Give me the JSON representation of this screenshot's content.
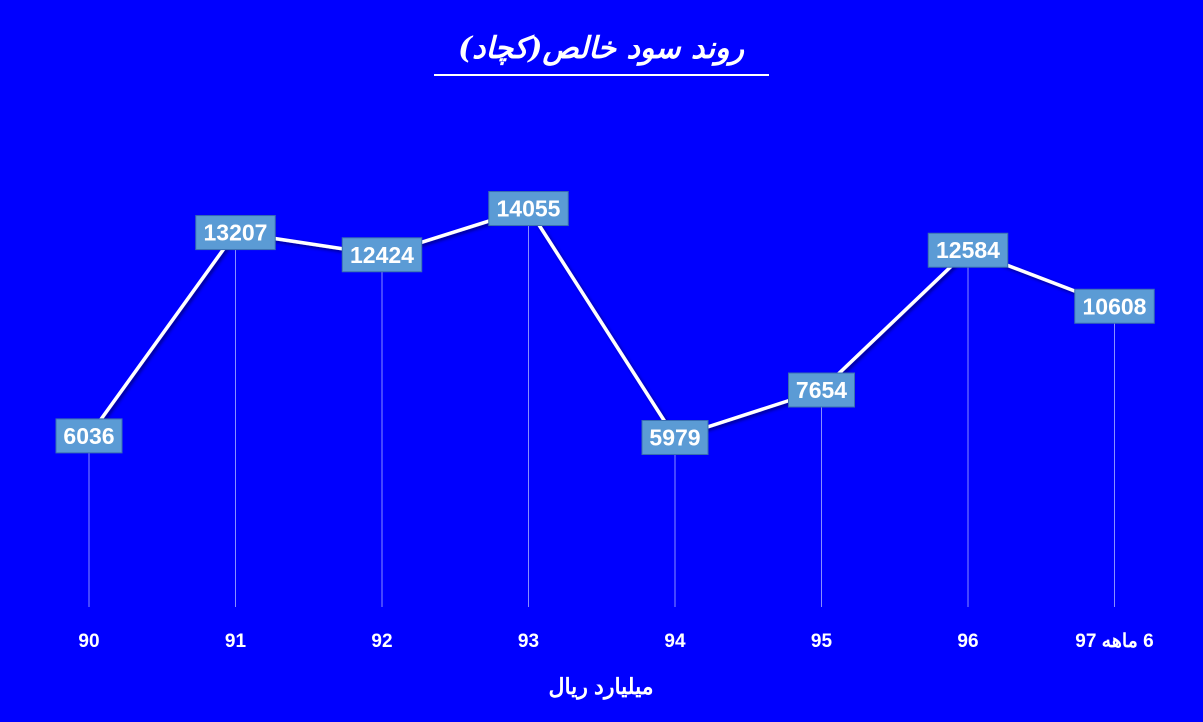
{
  "chart_data": {
    "type": "line",
    "title": "روند سود خالص(کچاد)",
    "categories": [
      "90",
      "91",
      "92",
      "93",
      "94",
      "95",
      "96",
      "6 ماهه 97"
    ],
    "series": [
      {
        "values": [
          6036,
          13207,
          12424,
          14055,
          5979,
          7654,
          12584,
          10608
        ]
      }
    ],
    "xlabel": "میلیارد ریال",
    "ylabel": "",
    "ylim": [
      0,
      20000
    ],
    "grid": false,
    "legend": "none",
    "data_labels": true,
    "colors": {
      "background": "#0000ff",
      "line": "#ffffff",
      "label_box": "#5b9bd5",
      "drop_line": "#c8d0ff",
      "text": "#ffffff"
    }
  }
}
